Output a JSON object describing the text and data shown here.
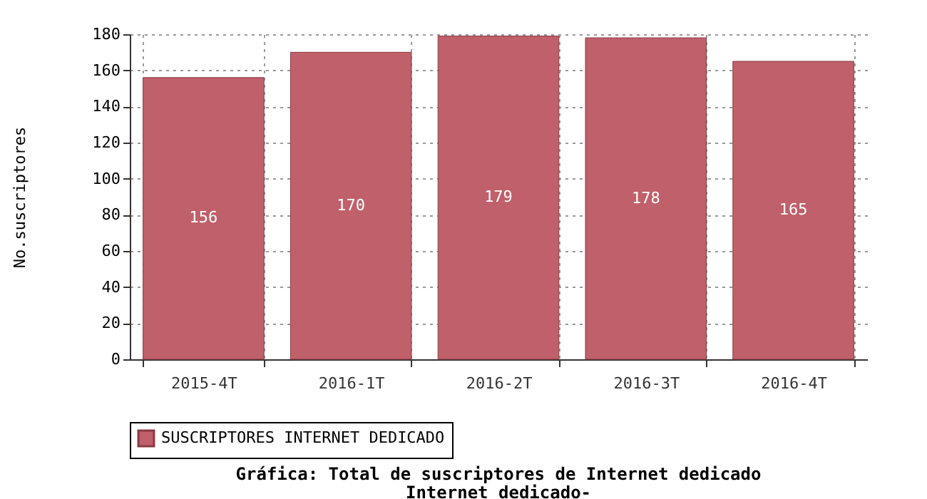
{
  "chart_data": {
    "type": "bar",
    "title": "Gráfica: Total de suscriptores de Internet dedicado",
    "subtitle": "Internet dedicado-",
    "ylabel": "No.suscriptores",
    "categories": [
      "2015-4T",
      "2016-1T",
      "2016-2T",
      "2016-3T",
      "2016-4T"
    ],
    "series": [
      {
        "name": "SUSCRIPTORES INTERNET DEDICADO",
        "color": "#c0606a",
        "values": [
          156,
          170,
          179,
          178,
          165
        ]
      }
    ],
    "ylim": [
      0,
      180
    ],
    "yticks": [
      0,
      20,
      40,
      60,
      80,
      100,
      120,
      140,
      160,
      180
    ],
    "grid": true,
    "legend": "bottom",
    "data_labels": true
  }
}
